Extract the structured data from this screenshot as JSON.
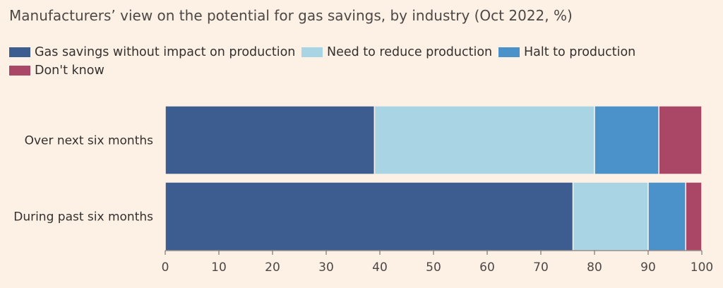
{
  "chart_data": {
    "type": "bar",
    "orientation": "horizontal",
    "stacked": true,
    "title": "Manufacturers’ view on the potential for gas savings, by industry (Oct 2022, %)",
    "categories": [
      "Over next six months",
      "During past six months"
    ],
    "series": [
      {
        "name": "Gas savings without impact on production",
        "color": "#3d5c8f",
        "values": [
          39,
          76
        ]
      },
      {
        "name": "Need to reduce production",
        "color": "#a8d4e3",
        "values": [
          41,
          14
        ]
      },
      {
        "name": "Halt to production",
        "color": "#4c92ca",
        "values": [
          12,
          7
        ]
      },
      {
        "name": "Don't know",
        "color": "#aa4766",
        "values": [
          8,
          3
        ]
      }
    ],
    "xlim": [
      0,
      100
    ],
    "xticks": [
      0,
      10,
      20,
      30,
      40,
      50,
      60,
      70,
      80,
      90,
      100
    ],
    "xlabel": "",
    "ylabel": "",
    "legend": "top-left",
    "grid": false
  }
}
